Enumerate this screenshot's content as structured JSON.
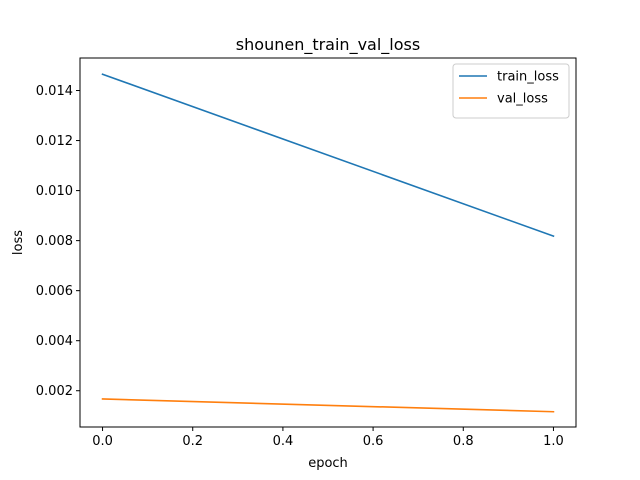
{
  "chart_data": {
    "type": "line",
    "title": "shounen_train_val_loss",
    "xlabel": "epoch",
    "ylabel": "loss",
    "xlim": [
      -0.05,
      1.05
    ],
    "ylim": [
      0.00055,
      0.0153
    ],
    "x_ticks": [
      0.0,
      0.2,
      0.4,
      0.6,
      0.8,
      1.0
    ],
    "x_tick_labels": [
      "0.0",
      "0.2",
      "0.4",
      "0.6",
      "0.8",
      "1.0"
    ],
    "y_ticks": [
      0.002,
      0.004,
      0.006,
      0.008,
      0.01,
      0.012,
      0.014
    ],
    "y_tick_labels": [
      "0.002",
      "0.004",
      "0.006",
      "0.008",
      "0.010",
      "0.012",
      "0.014"
    ],
    "grid": false,
    "legend_position": "top-right",
    "x": [
      0,
      1
    ],
    "series": [
      {
        "name": "train_loss",
        "values": [
          0.01465,
          0.00818
        ],
        "color": "#1f77b4"
      },
      {
        "name": "val_loss",
        "values": [
          0.00167,
          0.00116
        ],
        "color": "#ff7f0e"
      }
    ]
  }
}
